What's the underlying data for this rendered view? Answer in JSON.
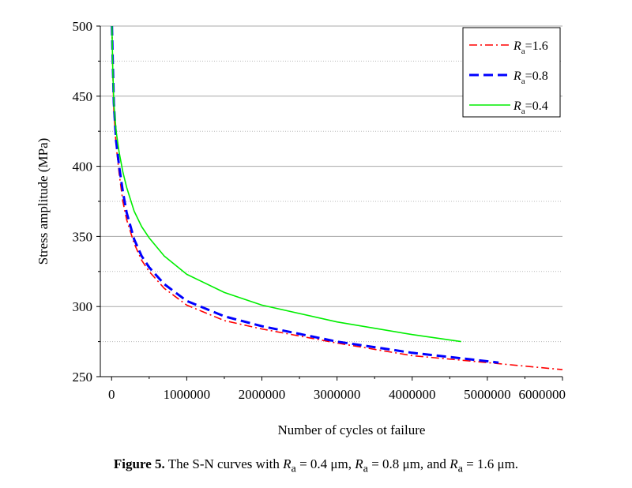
{
  "chart_data": {
    "type": "line",
    "xlabel": "Number of cycles ot failure",
    "ylabel": "Stress amplitude (MPa)",
    "xlim": [
      -150000,
      6000000
    ],
    "ylim": [
      250,
      500
    ],
    "xticks": [
      0,
      1000000,
      2000000,
      3000000,
      4000000,
      5000000,
      6000000
    ],
    "yticks": [
      250,
      300,
      350,
      400,
      450,
      500
    ],
    "grid": true,
    "legend_position": "top-right",
    "series": [
      {
        "name": "R_a=1.6",
        "legend_symbol": "R",
        "legend_sub": "a",
        "legend_value": "=1.6",
        "color": "#ff0000",
        "style": "dash-dot",
        "x": [
          5000,
          15000,
          30000,
          60000,
          100000,
          150000,
          200000,
          300000,
          400000,
          500000,
          700000,
          1000000,
          1500000,
          2000000,
          3000000,
          4000000,
          5000000,
          6000000
        ],
        "y": [
          500,
          470,
          440,
          415,
          395,
          375,
          362,
          345,
          333,
          325,
          313,
          301,
          290,
          284,
          274,
          265,
          260,
          255
        ]
      },
      {
        "name": "R_a=0.8",
        "legend_symbol": "R",
        "legend_sub": "a",
        "legend_value": "=0.8",
        "color": "#0000ff",
        "style": "dash",
        "x": [
          5000,
          15000,
          30000,
          60000,
          100000,
          150000,
          200000,
          300000,
          400000,
          500000,
          700000,
          1000000,
          1500000,
          2000000,
          3000000,
          4000000,
          5000000,
          5150000
        ],
        "y": [
          500,
          475,
          445,
          418,
          400,
          382,
          367,
          348,
          336,
          328,
          316,
          304,
          293,
          286,
          275,
          267,
          261,
          260
        ]
      },
      {
        "name": "R_a=0.4",
        "legend_symbol": "R",
        "legend_sub": "a",
        "legend_value": "=0.4",
        "color": "#00ee00",
        "style": "solid",
        "x": [
          5000,
          15000,
          30000,
          60000,
          100000,
          150000,
          200000,
          300000,
          400000,
          500000,
          700000,
          1000000,
          1500000,
          2000000,
          3000000,
          4000000,
          4650000
        ],
        "y": [
          500,
          470,
          445,
          425,
          410,
          396,
          385,
          368,
          357,
          349,
          336,
          323,
          310,
          301,
          289,
          280,
          275
        ]
      }
    ]
  },
  "caption": {
    "label": "Figure 5.",
    "text_1": " The S-N curves with ",
    "text_2": " = 0.4 μm, ",
    "text_3": " = 0.8 μm, and ",
    "text_4": " = 1.6 μm.",
    "symbol": "R",
    "sub": "a"
  }
}
